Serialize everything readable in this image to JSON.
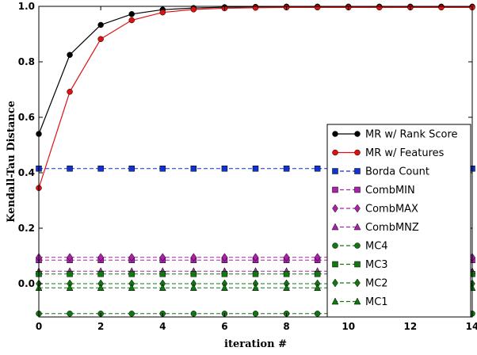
{
  "chart_data": {
    "type": "line",
    "title": "",
    "xlabel": "iteration #",
    "ylabel": "Kendall-Tau Distance",
    "xlim": [
      0,
      14
    ],
    "ylim": [
      -0.12,
      1.0
    ],
    "x_ticks": [
      0,
      2,
      4,
      6,
      8,
      10,
      12,
      14
    ],
    "y_ticks": [
      0.0,
      0.2,
      0.4,
      0.6,
      0.8,
      1.0
    ],
    "x_tick_labels": [
      "0",
      "2",
      "4",
      "6",
      "8",
      "10",
      "12",
      "14"
    ],
    "y_tick_labels": [
      "0.0",
      "0.2",
      "0.4",
      "0.6",
      "0.8",
      "1.0"
    ],
    "grid": false,
    "legend_position": "lower-right",
    "x": [
      0,
      1,
      2,
      3,
      4,
      5,
      6,
      7,
      8,
      9,
      10,
      11,
      12,
      13,
      14
    ],
    "series": [
      {
        "name": "MR w/ Rank Score",
        "color": "#000000",
        "line": "solid",
        "marker": "circle",
        "values": [
          0.54,
          0.825,
          0.933,
          0.972,
          0.988,
          0.994,
          0.997,
          0.998,
          0.999,
          0.999,
          0.999,
          0.999,
          0.999,
          0.999,
          0.999
        ]
      },
      {
        "name": "MR w/ Features",
        "color": "#dd1111",
        "line": "solid",
        "marker": "circle",
        "values": [
          0.345,
          0.692,
          0.882,
          0.95,
          0.978,
          0.989,
          0.993,
          0.995,
          0.996,
          0.996,
          0.996,
          0.996,
          0.996,
          0.996,
          0.996
        ]
      },
      {
        "name": "Borda Count",
        "color": "#1133cc",
        "line": "dashed",
        "marker": "square",
        "values": [
          0.415,
          0.415,
          0.415,
          0.415,
          0.415,
          0.415,
          0.415,
          0.415,
          0.415,
          0.415,
          0.415,
          0.415,
          0.415,
          0.415,
          0.415
        ]
      },
      {
        "name": "CombMIN",
        "color": "#aa22aa",
        "line": "dashed",
        "marker": "square",
        "values": [
          0.085,
          0.085,
          0.085,
          0.085,
          0.085,
          0.085,
          0.085,
          0.085,
          0.085,
          0.085,
          0.085,
          0.085,
          0.085,
          0.085,
          0.085
        ]
      },
      {
        "name": "CombMAX",
        "color": "#aa22aa",
        "line": "dashed",
        "marker": "diamond",
        "values": [
          0.095,
          0.095,
          0.095,
          0.095,
          0.095,
          0.095,
          0.095,
          0.095,
          0.095,
          0.095,
          0.095,
          0.095,
          0.095,
          0.095,
          0.095
        ]
      },
      {
        "name": "CombMNZ",
        "color": "#aa22aa",
        "line": "dashed",
        "marker": "triangle",
        "values": [
          0.045,
          0.045,
          0.045,
          0.045,
          0.045,
          0.045,
          0.045,
          0.045,
          0.045,
          0.045,
          0.045,
          0.045,
          0.045,
          0.045,
          0.045
        ]
      },
      {
        "name": "MC4",
        "color": "#117711",
        "line": "dashed",
        "marker": "circle",
        "values": [
          -0.108,
          -0.108,
          -0.108,
          -0.108,
          -0.108,
          -0.108,
          -0.108,
          -0.108,
          -0.108,
          -0.108,
          -0.108,
          -0.108,
          -0.108,
          -0.108,
          -0.108
        ]
      },
      {
        "name": "MC3",
        "color": "#117711",
        "line": "dashed",
        "marker": "square",
        "values": [
          0.035,
          0.035,
          0.035,
          0.035,
          0.035,
          0.035,
          0.035,
          0.035,
          0.035,
          0.035,
          0.035,
          0.035,
          0.035,
          0.035,
          0.035
        ]
      },
      {
        "name": "MC2",
        "color": "#117711",
        "line": "dashed",
        "marker": "diamond",
        "values": [
          0.0,
          0.0,
          0.0,
          0.0,
          0.0,
          0.0,
          0.0,
          0.0,
          0.0,
          0.0,
          0.0,
          0.0,
          0.0,
          0.0,
          0.0
        ]
      },
      {
        "name": "MC1",
        "color": "#117711",
        "line": "dashed",
        "marker": "triangle",
        "values": [
          -0.015,
          -0.015,
          -0.015,
          -0.015,
          -0.015,
          -0.015,
          -0.015,
          -0.015,
          -0.015,
          -0.015,
          -0.015,
          -0.015,
          -0.015,
          -0.015,
          -0.015
        ]
      }
    ]
  }
}
